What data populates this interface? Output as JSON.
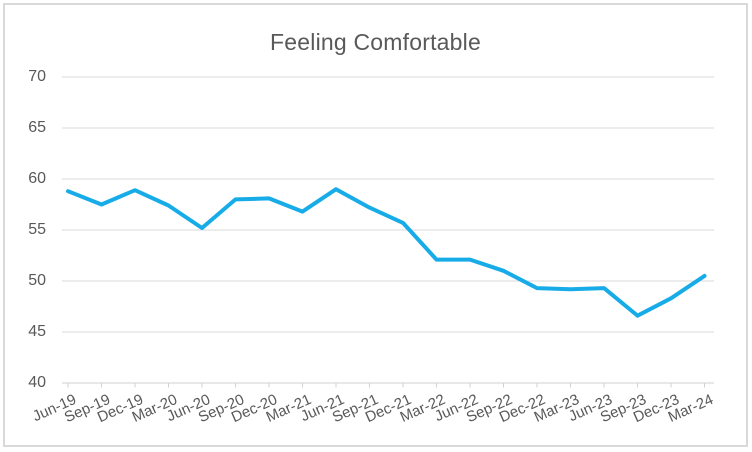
{
  "chart_data": {
    "type": "line",
    "title": "Feeling Comfortable",
    "categories": [
      "Jun-19",
      "Sep-19",
      "Dec-19",
      "Mar-20",
      "Jun-20",
      "Sep-20",
      "Dec-20",
      "Mar-21",
      "Jun-21",
      "Sep-21",
      "Dec-21",
      "Mar-22",
      "Jun-22",
      "Sep-22",
      "Dec-22",
      "Mar-23",
      "Jun-23",
      "Sep-23",
      "Dec-23",
      "Mar-24"
    ],
    "values": [
      58.8,
      57.5,
      58.9,
      57.4,
      55.2,
      58.0,
      58.1,
      56.8,
      59.0,
      57.2,
      55.7,
      52.1,
      52.1,
      51.0,
      49.3,
      49.2,
      49.3,
      46.6,
      48.3,
      50.5
    ],
    "xlabel": "",
    "ylabel": "",
    "ylim": [
      40,
      70
    ],
    "y_ticks": [
      40,
      45,
      50,
      55,
      60,
      65,
      70
    ],
    "grid": "horizontal",
    "legend": "none",
    "colors": {
      "line": "#17ACE8",
      "gridline": "#D9D9D9",
      "axis_line": "#D2D2D2",
      "axis_text": "#595959",
      "title_text": "#595959",
      "border": "#D9D9D9",
      "background": "#FFFFFF"
    }
  }
}
